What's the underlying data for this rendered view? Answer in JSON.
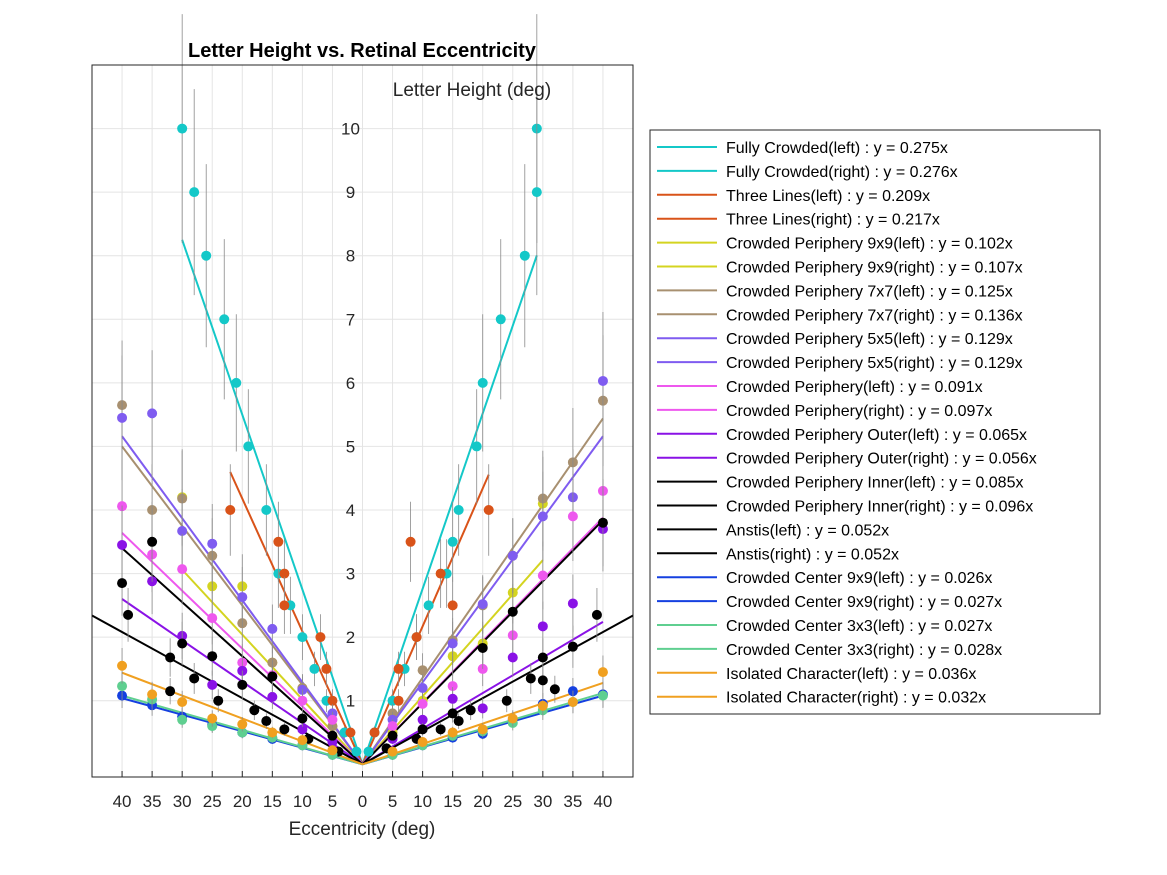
{
  "chart_data": {
    "type": "scatter",
    "title": "Letter Height vs. Retinal Eccentricity",
    "xlabel": "Eccentricity (deg)",
    "ylabel": "Letter Height (deg)",
    "xlim": [
      -45,
      45
    ],
    "ylim": [
      -0.2,
      11
    ],
    "x_ticks": [
      -40,
      -35,
      -30,
      -25,
      -20,
      -15,
      -10,
      -5,
      0,
      5,
      10,
      15,
      20,
      25,
      30,
      35,
      40
    ],
    "x_tick_labels": [
      "40",
      "35",
      "30",
      "25",
      "20",
      "15",
      "10",
      "5",
      "0",
      "5",
      "10",
      "15",
      "20",
      "25",
      "30",
      "35",
      "40"
    ],
    "y_ticks": [
      1,
      2,
      3,
      4,
      5,
      6,
      7,
      8,
      9,
      10
    ],
    "grid": true,
    "legend_position": "outside-right",
    "series": [
      {
        "name": "Fully Crowded(left) : y = 0.275x",
        "color": "#14c8c8",
        "side": "left",
        "slope": 0.275,
        "fit_range": [
          0,
          30
        ],
        "points": [
          [
            30,
            10
          ],
          [
            28,
            9
          ],
          [
            26,
            8
          ],
          [
            23,
            7
          ],
          [
            21,
            6
          ],
          [
            19,
            5
          ],
          [
            16,
            4
          ],
          [
            14,
            3
          ],
          [
            12,
            2.5
          ],
          [
            10,
            2
          ],
          [
            8,
            1.5
          ],
          [
            6,
            1
          ],
          [
            3,
            0.5
          ],
          [
            1,
            0.2
          ]
        ]
      },
      {
        "name": "Fully Crowded(right) : y = 0.276x",
        "color": "#14c8c8",
        "side": "right",
        "slope": 0.276,
        "fit_range": [
          0,
          29
        ],
        "points": [
          [
            29,
            10
          ],
          [
            29,
            9
          ],
          [
            27,
            8
          ],
          [
            23,
            7
          ],
          [
            20,
            6
          ],
          [
            19,
            5
          ],
          [
            16,
            4
          ],
          [
            15,
            3.5
          ],
          [
            14,
            3
          ],
          [
            11,
            2.5
          ],
          [
            9,
            2
          ],
          [
            7,
            1.5
          ],
          [
            5,
            1
          ],
          [
            2,
            0.5
          ],
          [
            1,
            0.2
          ]
        ]
      },
      {
        "name": "Three Lines(left) : y = 0.209x",
        "color": "#d95319",
        "side": "left",
        "slope": 0.209,
        "fit_range": [
          0,
          22
        ],
        "points": [
          [
            22,
            4
          ],
          [
            14,
            3.5
          ],
          [
            13,
            3
          ],
          [
            13,
            2.5
          ],
          [
            7,
            2
          ],
          [
            6,
            1.5
          ],
          [
            5,
            1
          ],
          [
            2,
            0.5
          ]
        ]
      },
      {
        "name": "Three Lines(right) : y = 0.217x",
        "color": "#d95319",
        "side": "right",
        "slope": 0.217,
        "fit_range": [
          0,
          21
        ],
        "points": [
          [
            21,
            4
          ],
          [
            8,
            3.5
          ],
          [
            13,
            3
          ],
          [
            15,
            2.5
          ],
          [
            9,
            2
          ],
          [
            6,
            1.5
          ],
          [
            6,
            1
          ],
          [
            2,
            0.5
          ]
        ]
      },
      {
        "name": "Crowded Periphery 9x9(left) : y = 0.102x",
        "color": "#d4d420",
        "side": "left",
        "slope": 0.102,
        "fit_range": [
          0,
          30
        ],
        "points": [
          [
            30,
            4.2
          ],
          [
            25,
            2.8
          ],
          [
            20,
            2.8
          ],
          [
            15,
            1.6
          ],
          [
            10,
            1.2
          ],
          [
            5,
            0.6
          ]
        ]
      },
      {
        "name": "Crowded Periphery 9x9(right) : y = 0.107x",
        "color": "#d4d420",
        "side": "right",
        "slope": 0.107,
        "fit_range": [
          0,
          30
        ],
        "points": [
          [
            30,
            4.1
          ],
          [
            25,
            2.7
          ],
          [
            20,
            1.9
          ],
          [
            15,
            1.7
          ],
          [
            10,
            1.0
          ],
          [
            5,
            0.5
          ]
        ]
      },
      {
        "name": "Crowded Periphery 7x7(left) : y = 0.125x",
        "color": "#a89070",
        "side": "left",
        "slope": 0.125,
        "fit_range": [
          0,
          40
        ],
        "points": [
          [
            40,
            5.65
          ],
          [
            35,
            4.0
          ],
          [
            30,
            4.18
          ],
          [
            25,
            3.28
          ],
          [
            20,
            2.22
          ],
          [
            15,
            1.6
          ],
          [
            10,
            1.2
          ],
          [
            5,
            0.6
          ]
        ]
      },
      {
        "name": "Crowded Periphery 7x7(right) : y = 0.136x",
        "color": "#a89070",
        "side": "right",
        "slope": 0.136,
        "fit_range": [
          0,
          40
        ],
        "points": [
          [
            40,
            5.72
          ],
          [
            35,
            4.75
          ],
          [
            30,
            4.18
          ],
          [
            25,
            3.28
          ],
          [
            20,
            2.5
          ],
          [
            15,
            1.95
          ],
          [
            10,
            1.48
          ],
          [
            5,
            0.8
          ]
        ]
      },
      {
        "name": "Crowded Periphery 5x5(left) : y = 0.129x",
        "color": "#7f5cf0",
        "side": "left",
        "slope": 0.129,
        "fit_range": [
          0,
          40
        ],
        "points": [
          [
            40,
            5.45
          ],
          [
            35,
            5.52
          ],
          [
            30,
            3.67
          ],
          [
            25,
            3.47
          ],
          [
            20,
            2.63
          ],
          [
            15,
            2.13
          ],
          [
            10,
            1.17
          ],
          [
            5,
            0.8
          ]
        ]
      },
      {
        "name": "Crowded Periphery 5x5(right) : y = 0.129x",
        "color": "#7f5cf0",
        "side": "right",
        "slope": 0.129,
        "fit_range": [
          0,
          40
        ],
        "points": [
          [
            40,
            6.03
          ],
          [
            35,
            4.2
          ],
          [
            30,
            3.9
          ],
          [
            25,
            3.28
          ],
          [
            20,
            2.52
          ],
          [
            15,
            1.9
          ],
          [
            10,
            1.2
          ],
          [
            5,
            0.7
          ]
        ]
      },
      {
        "name": "Crowded Periphery(left) : y = 0.091x",
        "color": "#ee58ee",
        "side": "left",
        "slope": 0.091,
        "fit_range": [
          0,
          40
        ],
        "points": [
          [
            40,
            4.06
          ],
          [
            35,
            3.3
          ],
          [
            30,
            3.07
          ],
          [
            25,
            2.3
          ],
          [
            20,
            1.6
          ],
          [
            15,
            1.4
          ],
          [
            10,
            1.0
          ],
          [
            5,
            0.7
          ]
        ]
      },
      {
        "name": "Crowded Periphery(right) : y = 0.097x",
        "color": "#ee58ee",
        "side": "right",
        "slope": 0.097,
        "fit_range": [
          0,
          40
        ],
        "points": [
          [
            40,
            4.3
          ],
          [
            35,
            3.9
          ],
          [
            30,
            2.97
          ],
          [
            25,
            2.03
          ],
          [
            20,
            1.5
          ],
          [
            15,
            1.23
          ],
          [
            10,
            0.95
          ],
          [
            5,
            0.6
          ]
        ]
      },
      {
        "name": "Crowded Periphery Outer(left) : y = 0.065x",
        "color": "#8a12e6",
        "side": "left",
        "slope": 0.065,
        "fit_range": [
          0,
          40
        ],
        "points": [
          [
            40,
            3.45
          ],
          [
            35,
            2.88
          ],
          [
            30,
            2.02
          ],
          [
            25,
            1.25
          ],
          [
            20,
            1.47
          ],
          [
            15,
            1.06
          ],
          [
            10,
            0.55
          ],
          [
            5,
            0.35
          ]
        ]
      },
      {
        "name": "Crowded Periphery Outer(right) : y = 0.056x",
        "color": "#8a12e6",
        "side": "right",
        "slope": 0.056,
        "fit_range": [
          0,
          40
        ],
        "points": [
          [
            40,
            3.7
          ],
          [
            35,
            2.53
          ],
          [
            30,
            2.17
          ],
          [
            25,
            1.68
          ],
          [
            20,
            0.88
          ],
          [
            15,
            1.03
          ],
          [
            10,
            0.7
          ],
          [
            5,
            0.4
          ]
        ]
      },
      {
        "name": "Crowded Periphery Inner(left) : y = 0.085x",
        "color": "#000000",
        "side": "left",
        "slope": 0.085,
        "fit_range": [
          0,
          40
        ],
        "points": [
          [
            40,
            2.85
          ],
          [
            35,
            3.5
          ],
          [
            30,
            1.9
          ],
          [
            25,
            1.7
          ],
          [
            20,
            1.25
          ],
          [
            15,
            1.38
          ],
          [
            10,
            0.72
          ],
          [
            5,
            0.45
          ]
        ]
      },
      {
        "name": "Crowded Periphery Inner(right) : y = 0.096x",
        "color": "#000000",
        "side": "right",
        "slope": 0.096,
        "fit_range": [
          0,
          40
        ],
        "points": [
          [
            40,
            3.8
          ],
          [
            35,
            1.85
          ],
          [
            30,
            1.68
          ],
          [
            25,
            2.4
          ],
          [
            20,
            1.83
          ],
          [
            15,
            0.8
          ],
          [
            10,
            0.55
          ],
          [
            5,
            0.45
          ]
        ]
      },
      {
        "name": "Anstis(left) : y = 0.052x",
        "color": "#000000",
        "side": "left",
        "slope": 0.052,
        "fit_range": [
          0,
          45
        ],
        "points": [
          [
            39,
            2.35
          ],
          [
            32,
            1.68
          ],
          [
            32,
            1.15
          ],
          [
            28,
            1.35
          ],
          [
            24,
            1.0
          ],
          [
            18,
            0.85
          ],
          [
            16,
            0.68
          ],
          [
            13,
            0.55
          ],
          [
            9,
            0.4
          ],
          [
            4,
            0.2
          ]
        ]
      },
      {
        "name": "Anstis(right) : y = 0.052x",
        "color": "#000000",
        "side": "right",
        "slope": 0.052,
        "fit_range": [
          0,
          45
        ],
        "points": [
          [
            39,
            2.35
          ],
          [
            32,
            1.18
          ],
          [
            28,
            1.35
          ],
          [
            30,
            1.32
          ],
          [
            24,
            1.0
          ],
          [
            18,
            0.85
          ],
          [
            16,
            0.68
          ],
          [
            13,
            0.55
          ],
          [
            9,
            0.4
          ],
          [
            4,
            0.25
          ]
        ]
      },
      {
        "name": "Crowded Center 9x9(left) : y = 0.026x",
        "color": "#1540e0",
        "side": "left",
        "slope": 0.026,
        "fit_range": [
          0,
          40
        ],
        "points": [
          [
            40,
            1.08
          ],
          [
            35,
            0.93
          ],
          [
            30,
            0.75
          ],
          [
            25,
            0.62
          ],
          [
            20,
            0.5
          ],
          [
            15,
            0.4
          ],
          [
            10,
            0.3
          ],
          [
            5,
            0.15
          ]
        ]
      },
      {
        "name": "Crowded Center 9x9(right) : y = 0.027x",
        "color": "#1540e0",
        "side": "right",
        "slope": 0.027,
        "fit_range": [
          0,
          40
        ],
        "points": [
          [
            40,
            1.1
          ],
          [
            35,
            1.15
          ],
          [
            30,
            0.95
          ],
          [
            25,
            0.7
          ],
          [
            20,
            0.48
          ],
          [
            15,
            0.42
          ],
          [
            10,
            0.3
          ],
          [
            5,
            0.15
          ]
        ]
      },
      {
        "name": "Crowded Center 3x3(left) : y = 0.027x",
        "color": "#5fcf90",
        "side": "left",
        "slope": 0.027,
        "fit_range": [
          0,
          40
        ],
        "points": [
          [
            40,
            1.23
          ],
          [
            35,
            1.02
          ],
          [
            30,
            0.7
          ],
          [
            25,
            0.6
          ],
          [
            20,
            0.5
          ],
          [
            15,
            0.42
          ],
          [
            10,
            0.3
          ],
          [
            5,
            0.15
          ]
        ]
      },
      {
        "name": "Crowded Center 3x3(right) : y = 0.028x",
        "color": "#5fcf90",
        "side": "right",
        "slope": 0.028,
        "fit_range": [
          0,
          40
        ],
        "points": [
          [
            40,
            1.08
          ],
          [
            35,
            0.98
          ],
          [
            30,
            0.85
          ],
          [
            25,
            0.65
          ],
          [
            20,
            0.52
          ],
          [
            15,
            0.45
          ],
          [
            10,
            0.3
          ],
          [
            5,
            0.15
          ]
        ]
      },
      {
        "name": "Isolated Character(left) : y = 0.036x",
        "color": "#f0a020",
        "side": "left",
        "slope": 0.036,
        "fit_range": [
          0,
          40
        ],
        "points": [
          [
            40,
            1.55
          ],
          [
            35,
            1.1
          ],
          [
            30,
            0.98
          ],
          [
            25,
            0.72
          ],
          [
            20,
            0.63
          ],
          [
            15,
            0.5
          ],
          [
            10,
            0.38
          ],
          [
            5,
            0.22
          ]
        ]
      },
      {
        "name": "Isolated Character(right) : y = 0.032x",
        "color": "#f0a020",
        "side": "right",
        "slope": 0.032,
        "fit_range": [
          0,
          40
        ],
        "points": [
          [
            40,
            1.45
          ],
          [
            35,
            0.98
          ],
          [
            30,
            0.92
          ],
          [
            25,
            0.72
          ],
          [
            20,
            0.55
          ],
          [
            15,
            0.5
          ],
          [
            10,
            0.35
          ],
          [
            5,
            0.2
          ]
        ]
      }
    ]
  }
}
